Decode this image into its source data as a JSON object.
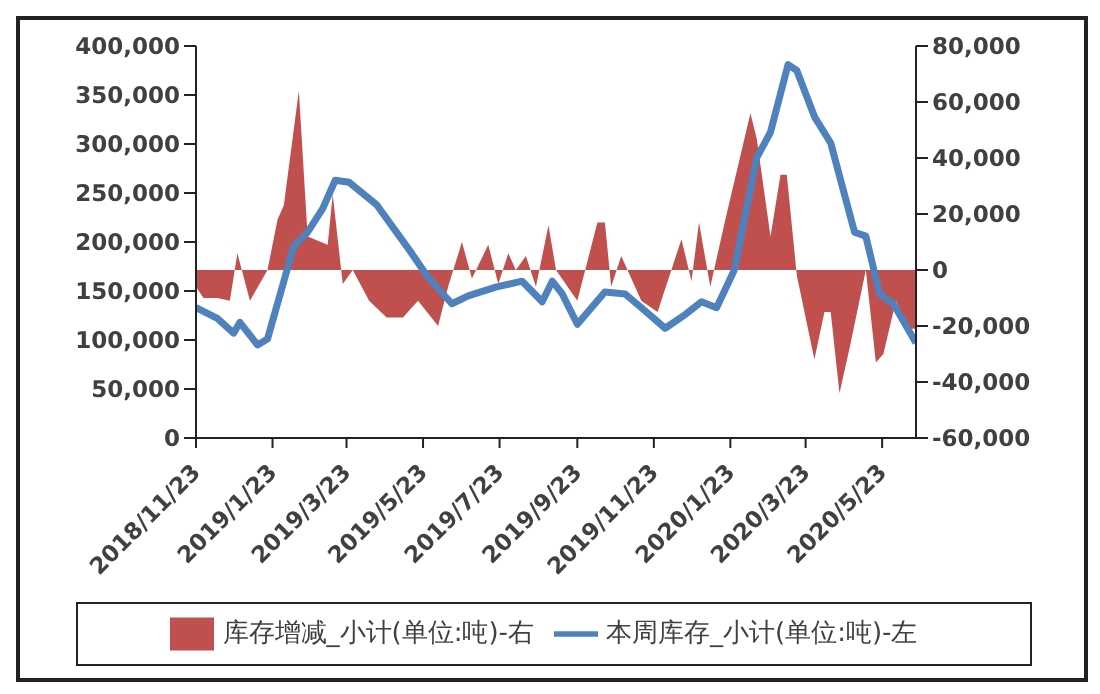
{
  "chart_data": {
    "type": "area",
    "xlim": [
      "2018-11-23",
      "2020-06-19"
    ],
    "xticks": [
      {
        "value": "2018-11-23",
        "label": "2018/11/23"
      },
      {
        "value": "2019-01-23",
        "label": "2019/1/23"
      },
      {
        "value": "2019-03-23",
        "label": "2019/3/23"
      },
      {
        "value": "2019-05-23",
        "label": "2019/5/23"
      },
      {
        "value": "2019-07-23",
        "label": "2019/7/23"
      },
      {
        "value": "2019-09-23",
        "label": "2019/9/23"
      },
      {
        "value": "2019-11-23",
        "label": "2019/11/23"
      },
      {
        "value": "2020-01-23",
        "label": "2020/1/23"
      },
      {
        "value": "2020-03-23",
        "label": "2020/3/23"
      },
      {
        "value": "2020-05-23",
        "label": "2020/5/23"
      }
    ],
    "ylim": [
      0,
      400000
    ],
    "yticks": [
      {
        "value": 0,
        "label": "0"
      },
      {
        "value": 50000,
        "label": "50,000"
      },
      {
        "value": 100000,
        "label": "100,000"
      },
      {
        "value": 150000,
        "label": "150,000"
      },
      {
        "value": 200000,
        "label": "200,000"
      },
      {
        "value": 250000,
        "label": "250,000"
      },
      {
        "value": 300000,
        "label": "300,000"
      },
      {
        "value": 350000,
        "label": "350,000"
      },
      {
        "value": 400000,
        "label": "400,000"
      }
    ],
    "y2lim": [
      -60000,
      80000
    ],
    "y2ticks": [
      {
        "value": -60000,
        "label": "-60,000"
      },
      {
        "value": -40000,
        "label": "-40,000"
      },
      {
        "value": -20000,
        "label": "-20,000"
      },
      {
        "value": 0,
        "label": "0"
      },
      {
        "value": 20000,
        "label": "20,000"
      },
      {
        "value": 40000,
        "label": "40,000"
      },
      {
        "value": 60000,
        "label": "60,000"
      },
      {
        "value": 80000,
        "label": "80,000"
      }
    ],
    "grid": false,
    "legend": "bottom",
    "series": [
      {
        "name": "库存增减_小计(单位:吨)-右",
        "axis": "y2",
        "color": "#c0504d",
        "x": [
          "2018-11-23",
          "2018-11-29",
          "2018-12-10",
          "2018-12-20",
          "2018-12-26",
          "2019-01-05",
          "2019-01-19",
          "2019-01-27",
          "2019-02-01",
          "2019-02-13",
          "2019-02-20",
          "2019-03-08",
          "2019-03-12",
          "2019-03-20",
          "2019-03-28",
          "2019-04-10",
          "2019-04-24",
          "2019-05-07",
          "2019-05-19",
          "2019-06-04",
          "2019-06-12",
          "2019-06-23",
          "2019-07-01",
          "2019-07-14",
          "2019-07-22",
          "2019-07-30",
          "2019-08-05",
          "2019-08-13",
          "2019-08-21",
          "2019-08-31",
          "2019-09-06",
          "2019-09-23",
          "2019-10-09",
          "2019-10-15",
          "2019-10-20",
          "2019-10-28",
          "2019-11-13",
          "2019-11-26",
          "2019-12-15",
          "2019-12-23",
          "2019-12-29",
          "2020-01-07",
          "2020-01-19",
          "2020-02-08",
          "2020-02-13",
          "2020-02-24",
          "2020-03-03",
          "2020-03-08",
          "2020-03-16",
          "2020-03-30",
          "2020-04-07",
          "2020-04-12",
          "2020-04-19",
          "2020-04-27",
          "2020-05-10",
          "2020-05-18",
          "2020-05-24",
          "2020-06-03",
          "2020-06-14",
          "2020-06-19"
        ],
        "values": [
          -6000,
          -10000,
          -10000,
          -11000,
          6000,
          -11000,
          0,
          18000,
          23000,
          64000,
          12000,
          9000,
          27000,
          -5000,
          0,
          -11000,
          -17000,
          -17000,
          -11000,
          -20000,
          -6000,
          10000,
          -3000,
          9000,
          -5000,
          6000,
          0,
          5000,
          -6000,
          16000,
          0,
          -11000,
          17000,
          17000,
          -6000,
          5000,
          -11000,
          -15000,
          11000,
          -4000,
          17000,
          -6000,
          18000,
          56000,
          47000,
          12000,
          34000,
          34000,
          -2000,
          -32000,
          -15000,
          -15000,
          -44000,
          -28000,
          0,
          -33000,
          -30000,
          -11000,
          -21000,
          -21000
        ]
      },
      {
        "name": "本周库存_小计(单位:吨)-左",
        "type": "line",
        "color": "#4f81bd",
        "x": [
          "2018-11-23",
          "2018-12-10",
          "2018-12-23",
          "2018-12-28",
          "2019-01-11",
          "2019-01-19",
          "2019-02-09",
          "2019-02-20",
          "2019-03-04",
          "2019-03-14",
          "2019-03-25",
          "2019-04-16",
          "2019-05-12",
          "2019-05-27",
          "2019-06-15",
          "2019-06-28",
          "2019-07-20",
          "2019-08-10",
          "2019-08-26",
          "2019-09-03",
          "2019-09-11",
          "2019-09-23",
          "2019-10-15",
          "2019-10-31",
          "2019-11-13",
          "2019-12-02",
          "2019-12-18",
          "2019-12-31",
          "2020-01-12",
          "2020-01-26",
          "2020-02-13",
          "2020-02-24",
          "2020-03-09",
          "2020-03-16",
          "2020-03-30",
          "2020-04-12",
          "2020-05-01",
          "2020-05-10",
          "2020-05-21",
          "2020-06-01",
          "2020-06-19"
        ],
        "values": [
          133000,
          122000,
          107000,
          118000,
          95000,
          101000,
          196000,
          210000,
          234000,
          263000,
          261000,
          238000,
          192000,
          164000,
          137000,
          145000,
          154000,
          160000,
          139000,
          160000,
          147000,
          116000,
          149000,
          147000,
          133000,
          112000,
          126000,
          139000,
          133000,
          171000,
          286000,
          312000,
          381000,
          375000,
          328000,
          301000,
          210000,
          206000,
          147000,
          137000,
          97000
        ]
      }
    ]
  }
}
